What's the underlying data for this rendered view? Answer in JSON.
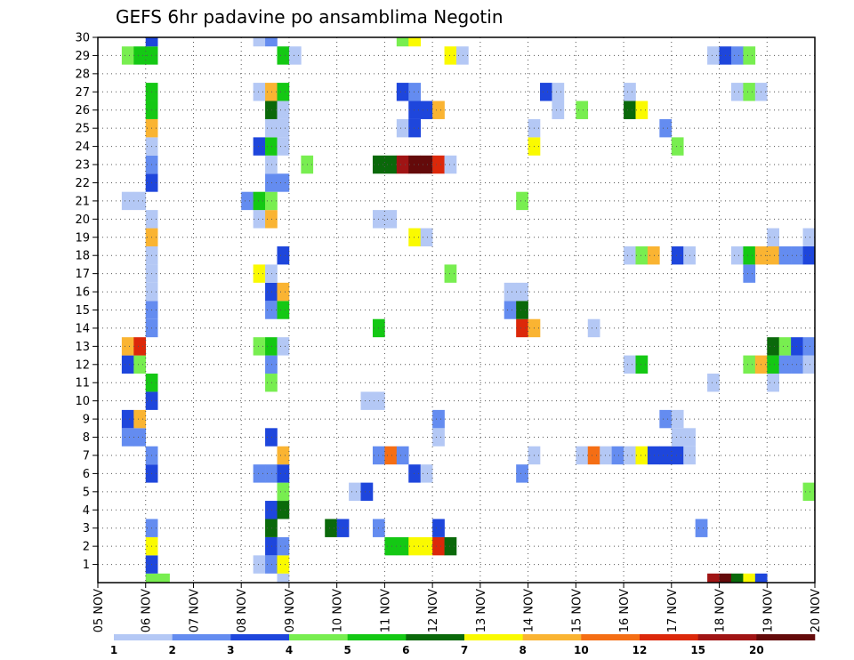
{
  "chart_data": {
    "type": "heatmap",
    "title": "GEFS 6hr padavine po ansamblima Negotin",
    "xlabel": "",
    "ylabel": "",
    "x_tick_labels": [
      "05 NOV",
      "06 NOV",
      "07 NOV",
      "08 NOV",
      "09 NOV",
      "10 NOV",
      "11 NOV",
      "12 NOV",
      "13 NOV",
      "14 NOV",
      "15 NOV",
      "16 NOV",
      "17 NOV",
      "18 NOV",
      "19 NOV",
      "20 NOV"
    ],
    "y_tick_labels": [
      "1",
      "2",
      "3",
      "4",
      "5",
      "6",
      "7",
      "8",
      "9",
      "10",
      "11",
      "12",
      "13",
      "14",
      "15",
      "16",
      "17",
      "18",
      "19",
      "20",
      "21",
      "22",
      "23",
      "24",
      "25",
      "26",
      "27",
      "28",
      "29",
      "30"
    ],
    "x_range_steps": [
      0,
      60
    ],
    "y_range_members": [
      0,
      30
    ],
    "grid": true,
    "legend": "bottom colorbar",
    "colorbar": {
      "labels": [
        "1",
        "2",
        "3",
        "4",
        "5",
        "6",
        "7",
        "8",
        "10",
        "12",
        "15",
        "20"
      ],
      "colors": [
        "#b4c8f5",
        "#648cf0",
        "#1e46dc",
        "#78ee50",
        "#14c814",
        "#0a690a",
        "#fafa00",
        "#fab432",
        "#f56e14",
        "#dc280a",
        "#a01414",
        "#640a0a"
      ]
    },
    "cells": [
      {
        "m": 30,
        "x": [
          [
            4,
            2
          ]
        ],
        "c": 2
      },
      {
        "m": 30,
        "x": [
          [
            12,
            0
          ],
          [
            17,
            4
          ],
          [
            18,
            3
          ],
          [
            25,
            3
          ],
          [
            26,
            6
          ]
        ],
        "c": null
      },
      {
        "m": 29,
        "x": [
          [
            3,
            3
          ],
          [
            4,
            4
          ],
          [
            13,
            3
          ],
          [
            14,
            0
          ],
          [
            29,
            6
          ],
          [
            30,
            0
          ],
          [
            60,
            0
          ]
        ],
        "c": null
      },
      {
        "m": 30,
        "x": [
          [
            8,
            0
          ],
          [
            9,
            1
          ],
          [
            12,
            0
          ],
          [
            13,
            0
          ],
          [
            14,
            3
          ]
        ],
        "c": null
      }
    ],
    "rows": {
      "0": [
        [
          4,
          3
        ],
        [
          5,
          3
        ],
        [
          15,
          0
        ],
        [
          51,
          10
        ],
        [
          52,
          11
        ],
        [
          53,
          5
        ],
        [
          54,
          6
        ],
        [
          55,
          2
        ]
      ],
      "1": [
        [
          4,
          2
        ],
        [
          13,
          0
        ],
        [
          14,
          1
        ],
        [
          15,
          6
        ]
      ],
      "2": [
        [
          4,
          6
        ],
        [
          14,
          2
        ],
        [
          15,
          1
        ],
        [
          24,
          4
        ],
        [
          25,
          4
        ],
        [
          26,
          6
        ],
        [
          27,
          6
        ],
        [
          28,
          9
        ],
        [
          29,
          5
        ]
      ],
      "3": [
        [
          4,
          1
        ],
        [
          14,
          5
        ],
        [
          19,
          5
        ],
        [
          20,
          2
        ],
        [
          23,
          1
        ],
        [
          28,
          2
        ],
        [
          50,
          1
        ]
      ],
      "4": [
        [
          14,
          2
        ],
        [
          15,
          5
        ]
      ],
      "5": [
        [
          15,
          3
        ],
        [
          21,
          0
        ],
        [
          22,
          2
        ],
        [
          59,
          3
        ],
        [
          60,
          0
        ]
      ],
      "6": [
        [
          4,
          2
        ],
        [
          13,
          1
        ],
        [
          14,
          1
        ],
        [
          15,
          2
        ],
        [
          26,
          2
        ],
        [
          27,
          0
        ],
        [
          35,
          1
        ]
      ],
      "7": [
        [
          4,
          1
        ],
        [
          15,
          7
        ],
        [
          23,
          1
        ],
        [
          24,
          8
        ],
        [
          25,
          1
        ],
        [
          36,
          0
        ],
        [
          40,
          0
        ],
        [
          41,
          8
        ],
        [
          42,
          0
        ],
        [
          43,
          1
        ],
        [
          44,
          0
        ],
        [
          45,
          6
        ],
        [
          46,
          2
        ],
        [
          47,
          2
        ],
        [
          48,
          2
        ],
        [
          49,
          0
        ]
      ],
      "8": [
        [
          2,
          1
        ],
        [
          3,
          1
        ],
        [
          14,
          2
        ],
        [
          28,
          0
        ],
        [
          48,
          0
        ],
        [
          49,
          0
        ]
      ],
      "9": [
        [
          2,
          2
        ],
        [
          3,
          7
        ],
        [
          28,
          1
        ],
        [
          47,
          1
        ],
        [
          48,
          0
        ]
      ],
      "10": [
        [
          4,
          2
        ],
        [
          22,
          0
        ],
        [
          23,
          0
        ]
      ],
      "11": [
        [
          4,
          4
        ],
        [
          14,
          3
        ],
        [
          51,
          0
        ],
        [
          56,
          0
        ]
      ],
      "12": [
        [
          2,
          2
        ],
        [
          3,
          3
        ],
        [
          14,
          1
        ],
        [
          44,
          0
        ],
        [
          45,
          4
        ],
        [
          54,
          3
        ],
        [
          55,
          7
        ],
        [
          56,
          4
        ],
        [
          57,
          1
        ],
        [
          58,
          1
        ],
        [
          59,
          0
        ],
        [
          60,
          1
        ]
      ],
      "13": [
        [
          2,
          7
        ],
        [
          3,
          9
        ],
        [
          13,
          3
        ],
        [
          14,
          4
        ],
        [
          15,
          0
        ],
        [
          56,
          5
        ],
        [
          57,
          3
        ],
        [
          58,
          2
        ],
        [
          59,
          1
        ]
      ],
      "14": [
        [
          4,
          1
        ],
        [
          23,
          4
        ],
        [
          35,
          9
        ],
        [
          36,
          7
        ],
        [
          41,
          0
        ]
      ],
      "15": [
        [
          4,
          1
        ],
        [
          14,
          1
        ],
        [
          15,
          4
        ],
        [
          34,
          1
        ],
        [
          35,
          5
        ]
      ],
      "16": [
        [
          4,
          0
        ],
        [
          14,
          2
        ],
        [
          15,
          7
        ],
        [
          34,
          0
        ],
        [
          35,
          0
        ]
      ],
      "17": [
        [
          4,
          0
        ],
        [
          13,
          6
        ],
        [
          14,
          0
        ],
        [
          29,
          3
        ],
        [
          54,
          1
        ]
      ],
      "18": [
        [
          4,
          0
        ],
        [
          15,
          2
        ],
        [
          44,
          0
        ],
        [
          45,
          3
        ],
        [
          46,
          7
        ],
        [
          48,
          2
        ],
        [
          49,
          0
        ],
        [
          53,
          0
        ],
        [
          54,
          4
        ],
        [
          55,
          7
        ],
        [
          56,
          7
        ],
        [
          57,
          1
        ],
        [
          58,
          1
        ],
        [
          59,
          2
        ]
      ],
      "19": [
        [
          4,
          7
        ],
        [
          26,
          6
        ],
        [
          27,
          0
        ],
        [
          56,
          0
        ],
        [
          59,
          0
        ]
      ],
      "20": [
        [
          4,
          0
        ],
        [
          13,
          0
        ],
        [
          14,
          7
        ],
        [
          23,
          0
        ],
        [
          24,
          0
        ]
      ],
      "21": [
        [
          2,
          0
        ],
        [
          3,
          0
        ],
        [
          12,
          1
        ],
        [
          13,
          4
        ],
        [
          14,
          3
        ],
        [
          35,
          3
        ]
      ],
      "22": [
        [
          4,
          2
        ],
        [
          14,
          1
        ],
        [
          15,
          1
        ]
      ],
      "23": [
        [
          4,
          1
        ],
        [
          14,
          0
        ],
        [
          17,
          3
        ],
        [
          23,
          5
        ],
        [
          24,
          5
        ],
        [
          25,
          10
        ],
        [
          26,
          11
        ],
        [
          27,
          11
        ],
        [
          28,
          9
        ],
        [
          29,
          0
        ]
      ],
      "24": [
        [
          4,
          0
        ],
        [
          13,
          2
        ],
        [
          14,
          4
        ],
        [
          15,
          0
        ],
        [
          36,
          6
        ],
        [
          48,
          3
        ]
      ],
      "25": [
        [
          4,
          7
        ],
        [
          14,
          0
        ],
        [
          15,
          0
        ],
        [
          25,
          0
        ],
        [
          26,
          2
        ],
        [
          36,
          0
        ],
        [
          47,
          1
        ]
      ],
      "26": [
        [
          4,
          4
        ],
        [
          14,
          5
        ],
        [
          15,
          0
        ],
        [
          26,
          2
        ],
        [
          27,
          2
        ],
        [
          28,
          7
        ],
        [
          38,
          0
        ],
        [
          40,
          3
        ],
        [
          44,
          5
        ],
        [
          45,
          6
        ]
      ],
      "27": [
        [
          4,
          4
        ],
        [
          13,
          0
        ],
        [
          14,
          7
        ],
        [
          15,
          4
        ],
        [
          25,
          2
        ],
        [
          26,
          1
        ],
        [
          37,
          2
        ],
        [
          38,
          0
        ],
        [
          44,
          0
        ],
        [
          53,
          0
        ],
        [
          54,
          3
        ],
        [
          55,
          0
        ]
      ],
      "29": [
        [
          2,
          3
        ],
        [
          3,
          4
        ],
        [
          4,
          4
        ],
        [
          15,
          4
        ],
        [
          16,
          0
        ],
        [
          29,
          6
        ],
        [
          30,
          0
        ],
        [
          51,
          0
        ],
        [
          52,
          2
        ],
        [
          53,
          1
        ],
        [
          54,
          3
        ]
      ],
      "30": [
        [
          4,
          2
        ],
        [
          13,
          0
        ],
        [
          14,
          1
        ],
        [
          25,
          3
        ],
        [
          26,
          6
        ]
      ]
    }
  }
}
